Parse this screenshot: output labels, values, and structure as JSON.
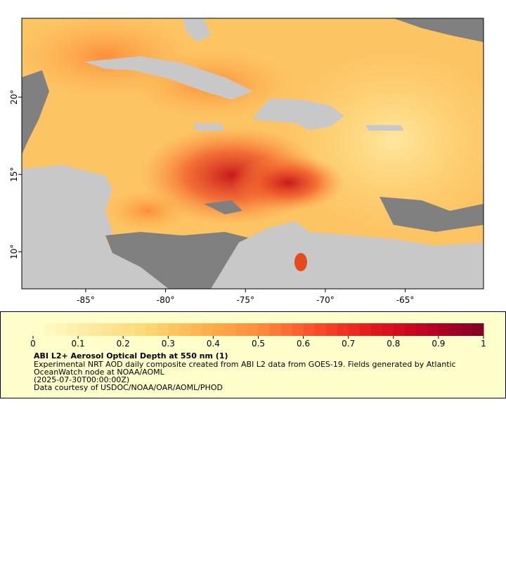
{
  "map": {
    "lonlim": [
      -89,
      -60.1
    ],
    "latlim": [
      7.6,
      25.1
    ],
    "lon_ticks": [
      {
        "value": -85,
        "label": "-85°"
      },
      {
        "value": -80,
        "label": "-80°"
      },
      {
        "value": -75,
        "label": "-75°"
      },
      {
        "value": -70,
        "label": "-70°"
      },
      {
        "value": -65,
        "label": "-65°"
      }
    ],
    "lat_ticks": [
      {
        "value": 10,
        "label": "10°"
      },
      {
        "value": 15,
        "label": "15°"
      },
      {
        "value": 20,
        "label": "20°"
      }
    ]
  },
  "colorbar": {
    "range": [
      0,
      1
    ],
    "ticks": [
      0,
      0.1,
      0.2,
      0.3,
      0.4,
      0.5,
      0.6,
      0.7,
      0.8,
      0.9,
      1
    ],
    "colors": [
      "#ffffcc",
      "#feeaa0",
      "#fed976",
      "#feb24c",
      "#fd8d3c",
      "#fc4e2a",
      "#e31a1c",
      "#bd0026",
      "#800026"
    ]
  },
  "caption": {
    "title": "ABI L2+ Aerosol Optical Depth at 550 nm (1)",
    "lines": [
      "Experimental NRT AOD daily composite created from ABI L2 data from GOES-19. Fields generated by Atlantic",
      "OceanWatch node at NOAA/AOML",
      "(2025-07-30T00:00:00Z)",
      "Data courtesy of USDOC/NOAA/OAR/AOML/PHOD"
    ]
  }
}
